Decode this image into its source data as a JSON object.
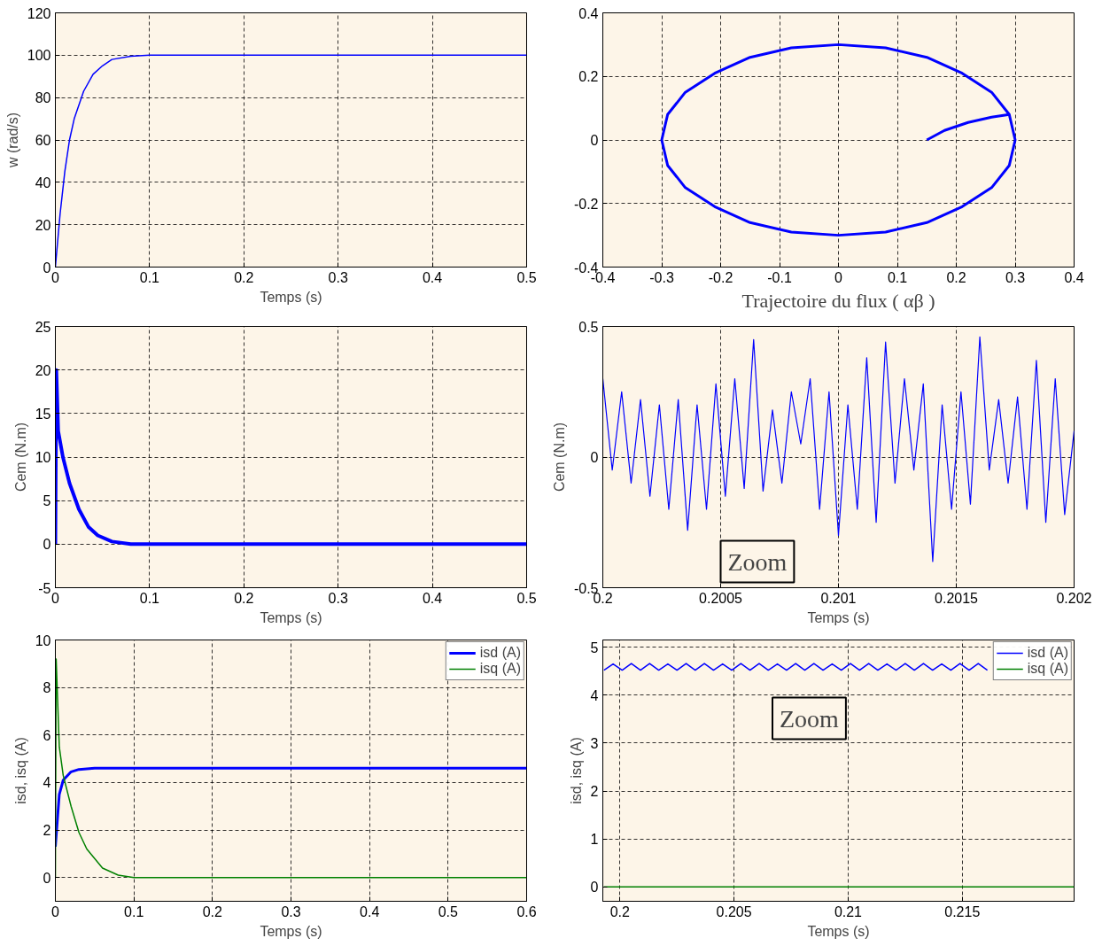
{
  "chart_data": [
    {
      "type": "line",
      "xlabel": "Temps (s)",
      "ylabel": "w (rad/s)",
      "xlim": [
        0,
        0.5
      ],
      "ylim": [
        0,
        120
      ],
      "xticks": [
        0,
        0.1,
        0.2,
        0.3,
        0.4,
        0.5
      ],
      "yticks": [
        0,
        20,
        40,
        60,
        80,
        100,
        120
      ],
      "grid": true,
      "series": [
        {
          "color": "#0000ff",
          "x": [
            0,
            0.005,
            0.01,
            0.015,
            0.02,
            0.03,
            0.04,
            0.05,
            0.06,
            0.08,
            0.1,
            0.2,
            0.3,
            0.4,
            0.5
          ],
          "values": [
            0,
            25,
            45,
            60,
            70,
            83,
            91,
            95,
            98,
            99.5,
            100,
            100,
            100,
            100,
            100
          ]
        }
      ]
    },
    {
      "type": "line",
      "xlabel": "Trajectoire du flux ( αβ )",
      "xlim": [
        -0.4,
        0.4
      ],
      "ylim": [
        -0.4,
        0.4
      ],
      "xticks": [
        -0.4,
        -0.3,
        -0.2,
        -0.1,
        0,
        0.1,
        0.2,
        0.3,
        0.4
      ],
      "yticks": [
        -0.4,
        -0.2,
        0,
        0.2,
        0.4
      ],
      "grid": true,
      "series": [
        {
          "color": "#0000ff",
          "x": [
            0.15,
            0.18,
            0.22,
            0.26,
            0.29,
            0.26,
            0.21,
            0.15,
            0.08,
            0,
            -0.08,
            -0.15,
            -0.21,
            -0.26,
            -0.29,
            -0.3,
            -0.29,
            -0.26,
            -0.21,
            -0.15,
            -0.08,
            0,
            0.08,
            0.15,
            0.21,
            0.26,
            0.29,
            0.3,
            0.29
          ],
          "values": [
            0,
            0.03,
            0.055,
            0.072,
            0.08,
            0.15,
            0.21,
            0.26,
            0.29,
            0.3,
            0.29,
            0.26,
            0.21,
            0.15,
            0.08,
            0,
            -0.08,
            -0.15,
            -0.21,
            -0.26,
            -0.29,
            -0.3,
            -0.29,
            -0.26,
            -0.21,
            -0.15,
            -0.08,
            0,
            0.08
          ]
        }
      ]
    },
    {
      "type": "line",
      "xlabel": "Temps (s)",
      "ylabel": "Cem (N.m)",
      "xlim": [
        0,
        0.5
      ],
      "ylim": [
        -5,
        25
      ],
      "xticks": [
        0,
        0.1,
        0.2,
        0.3,
        0.4,
        0.5
      ],
      "yticks": [
        -5,
        0,
        5,
        10,
        15,
        20,
        25
      ],
      "grid": true,
      "series": [
        {
          "color": "#0000ff",
          "x": [
            0,
            0.001,
            0.003,
            0.008,
            0.015,
            0.025,
            0.035,
            0.045,
            0.06,
            0.08,
            0.1,
            0.2,
            0.3,
            0.4,
            0.5
          ],
          "values": [
            0,
            20,
            13,
            10,
            7,
            4,
            2,
            1,
            0.3,
            0,
            0,
            0,
            0,
            0,
            0
          ]
        }
      ]
    },
    {
      "type": "line",
      "xlabel": "Temps (s)",
      "ylabel": "Cem (N.m)",
      "xlim": [
        0.2,
        0.202
      ],
      "ylim": [
        -0.5,
        0.5
      ],
      "xticks": [
        0.2,
        0.2005,
        0.201,
        0.2015,
        0.202
      ],
      "yticks": [
        -0.5,
        0,
        0.5
      ],
      "grid": true,
      "annotations": [
        "Zoom"
      ],
      "series": [
        {
          "color": "#0000ff",
          "x": [
            0.2,
            0.20004,
            0.20008,
            0.20012,
            0.20016,
            0.2002,
            0.20024,
            0.20028,
            0.20032,
            0.20036,
            0.2004,
            0.20044,
            0.20048,
            0.20052,
            0.20056,
            0.2006,
            0.20064,
            0.20068,
            0.20072,
            0.20076,
            0.2008,
            0.20084,
            0.20088,
            0.20092,
            0.20096,
            0.201,
            0.20104,
            0.20108,
            0.20112,
            0.20116,
            0.2012,
            0.20124,
            0.20128,
            0.20132,
            0.20136,
            0.2014,
            0.20144,
            0.20148,
            0.20152,
            0.20156,
            0.2016,
            0.20164,
            0.20168,
            0.20172,
            0.20176,
            0.2018,
            0.20184,
            0.20188,
            0.20192,
            0.20196,
            0.202
          ],
          "values": [
            0.3,
            -0.05,
            0.25,
            -0.1,
            0.22,
            -0.15,
            0.2,
            -0.2,
            0.22,
            -0.28,
            0.2,
            -0.2,
            0.28,
            -0.15,
            0.3,
            -0.12,
            0.45,
            -0.13,
            0.18,
            -0.1,
            0.25,
            0.05,
            0.3,
            -0.2,
            0.25,
            -0.3,
            0.2,
            -0.2,
            0.38,
            -0.25,
            0.44,
            -0.1,
            0.3,
            -0.05,
            0.28,
            -0.4,
            0.2,
            -0.2,
            0.25,
            -0.18,
            0.46,
            -0.05,
            0.22,
            -0.1,
            0.23,
            -0.2,
            0.37,
            -0.25,
            0.3,
            -0.22,
            0.1
          ]
        }
      ]
    },
    {
      "type": "line",
      "xlabel": "Temps (s)",
      "ylabel": "isd, isq (A)",
      "xlim": [
        0,
        0.6
      ],
      "ylim": [
        -1,
        10
      ],
      "xticks": [
        0,
        0.1,
        0.2,
        0.3,
        0.4,
        0.5,
        0.6
      ],
      "yticks": [
        0,
        2,
        4,
        6,
        8,
        10
      ],
      "grid": true,
      "legend": "top right",
      "series": [
        {
          "name": "isd (A)",
          "color": "#0000ff",
          "x": [
            0,
            0.005,
            0.01,
            0.02,
            0.03,
            0.05,
            0.1,
            0.2,
            0.3,
            0.4,
            0.5,
            0.6
          ],
          "values": [
            1.3,
            3.5,
            4.1,
            4.45,
            4.55,
            4.6,
            4.6,
            4.6,
            4.6,
            4.6,
            4.6,
            4.6
          ]
        },
        {
          "name": "isq (A)",
          "color": "#008000",
          "x": [
            0,
            0.001,
            0.005,
            0.01,
            0.02,
            0.03,
            0.04,
            0.06,
            0.08,
            0.1,
            0.2,
            0.3,
            0.4,
            0.5,
            0.6
          ],
          "values": [
            0,
            9.2,
            5.5,
            4.3,
            3,
            1.9,
            1.2,
            0.4,
            0.1,
            0,
            0,
            0,
            0,
            0,
            0
          ]
        }
      ]
    },
    {
      "type": "line",
      "xlabel": "Temps (s)",
      "ylabel": "isd, isq (A)",
      "xlim": [
        0.19925,
        0.2199
      ],
      "ylim": [
        -0.3,
        5.15
      ],
      "xticks": [
        0.2,
        0.205,
        0.21,
        0.215
      ],
      "yticks": [
        0,
        1,
        2,
        3,
        4,
        5
      ],
      "grid": true,
      "legend": "top right",
      "annotations": [
        "Zoom"
      ],
      "series": [
        {
          "name": "isd (A)",
          "color": "#0000ff",
          "x": [
            0.1993,
            0.1997,
            0.2001,
            0.2005,
            0.2009,
            0.2013,
            0.2017,
            0.2021,
            0.2025,
            0.2029,
            0.2033,
            0.2037,
            0.2041,
            0.2045,
            0.2049,
            0.2053,
            0.2057,
            0.2061,
            0.2065,
            0.2069,
            0.2073,
            0.2077,
            0.2081,
            0.2085,
            0.2089,
            0.2093,
            0.2097,
            0.2101,
            0.2105,
            0.2109,
            0.2113,
            0.2117,
            0.2121,
            0.2125,
            0.2129,
            0.2133,
            0.2137,
            0.2141,
            0.2145,
            0.2149,
            0.2153,
            0.2157,
            0.2161
          ],
          "values": [
            4.52,
            4.65,
            4.52,
            4.66,
            4.52,
            4.66,
            4.52,
            4.65,
            4.52,
            4.66,
            4.52,
            4.66,
            4.52,
            4.65,
            4.52,
            4.66,
            4.52,
            4.66,
            4.52,
            4.65,
            4.52,
            4.66,
            4.52,
            4.66,
            4.52,
            4.65,
            4.52,
            4.66,
            4.52,
            4.66,
            4.52,
            4.65,
            4.52,
            4.66,
            4.52,
            4.66,
            4.52,
            4.65,
            4.52,
            4.66,
            4.52,
            4.66,
            4.52
          ]
        },
        {
          "name": "isq (A)",
          "color": "#008000",
          "x": [
            0.1993,
            0.2013,
            0.2033,
            0.2053,
            0.2073,
            0.2093,
            0.2113,
            0.2133,
            0.2153,
            0.2173,
            0.2193,
            0.2199
          ],
          "values": [
            0,
            0,
            0,
            0,
            0,
            0,
            0,
            0,
            0,
            0,
            0,
            0
          ]
        }
      ]
    }
  ]
}
